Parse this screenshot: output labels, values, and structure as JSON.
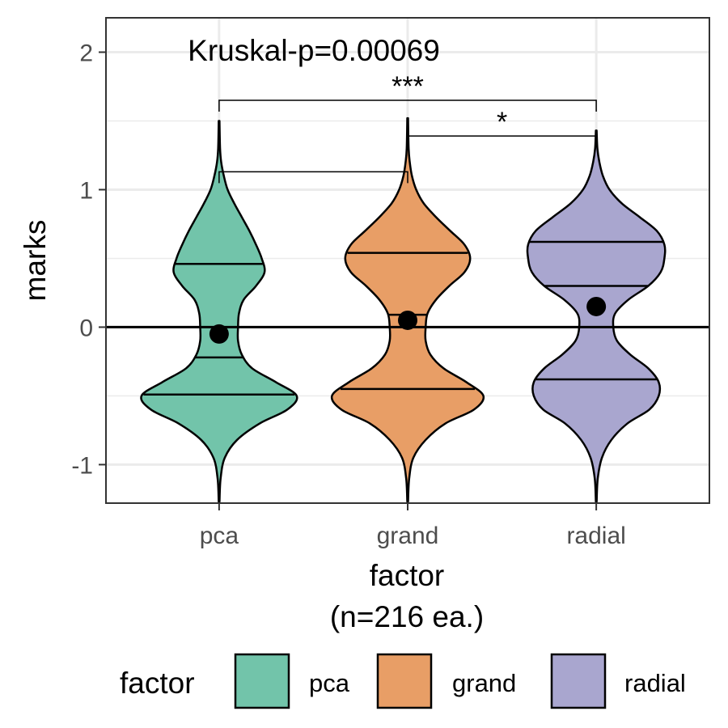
{
  "chart_data": {
    "type": "violin",
    "annotation": "Kruskal-p=0.00069",
    "xlabel": "factor",
    "xlabel_sub": "(n=216 ea.)",
    "ylabel": "marks",
    "ylim": [
      -1.28,
      2.25
    ],
    "yticks": [
      -1,
      0,
      1,
      2
    ],
    "ytick_labels": [
      "-1",
      "0",
      "1",
      "2"
    ],
    "reference_line_y": 0,
    "grid": true,
    "categories": [
      "pca",
      "grand",
      "radial"
    ],
    "colors": {
      "pca": "#72c4aa",
      "grand": "#e89e66",
      "radial": "#a9a6cf"
    },
    "series": [
      {
        "name": "pca",
        "mean": -0.05,
        "quartiles": [
          -0.49,
          -0.22,
          0.46
        ],
        "range": [
          -1.27,
          1.5
        ],
        "color": "#72c4aa",
        "density": [
          [
            -1.27,
            0.004
          ],
          [
            -1.1,
            0.016
          ],
          [
            -0.95,
            0.06
          ],
          [
            -0.82,
            0.19
          ],
          [
            -0.7,
            0.43
          ],
          [
            -0.6,
            0.72
          ],
          [
            -0.5,
            0.82
          ],
          [
            -0.4,
            0.6
          ],
          [
            -0.3,
            0.35
          ],
          [
            -0.2,
            0.24
          ],
          [
            -0.1,
            0.2
          ],
          [
            0.0,
            0.2
          ],
          [
            0.1,
            0.21
          ],
          [
            0.2,
            0.26
          ],
          [
            0.3,
            0.39
          ],
          [
            0.4,
            0.48
          ],
          [
            0.5,
            0.45
          ],
          [
            0.6,
            0.39
          ],
          [
            0.7,
            0.32
          ],
          [
            0.8,
            0.24
          ],
          [
            0.9,
            0.16
          ],
          [
            1.0,
            0.09
          ],
          [
            1.1,
            0.05
          ],
          [
            1.2,
            0.022
          ],
          [
            1.3,
            0.01
          ],
          [
            1.5,
            0.004
          ]
        ]
      },
      {
        "name": "grand",
        "mean": 0.05,
        "quartiles": [
          -0.45,
          0.09,
          0.54
        ],
        "range": [
          -1.27,
          1.52
        ],
        "color": "#e89e66",
        "density": [
          [
            -1.27,
            0.004
          ],
          [
            -1.1,
            0.016
          ],
          [
            -0.95,
            0.06
          ],
          [
            -0.82,
            0.19
          ],
          [
            -0.7,
            0.4
          ],
          [
            -0.6,
            0.7
          ],
          [
            -0.5,
            0.8
          ],
          [
            -0.4,
            0.62
          ],
          [
            -0.3,
            0.38
          ],
          [
            -0.2,
            0.24
          ],
          [
            -0.1,
            0.19
          ],
          [
            0.0,
            0.19
          ],
          [
            0.1,
            0.21
          ],
          [
            0.2,
            0.3
          ],
          [
            0.3,
            0.44
          ],
          [
            0.4,
            0.6
          ],
          [
            0.5,
            0.66
          ],
          [
            0.6,
            0.6
          ],
          [
            0.7,
            0.45
          ],
          [
            0.8,
            0.3
          ],
          [
            0.9,
            0.17
          ],
          [
            1.0,
            0.09
          ],
          [
            1.1,
            0.045
          ],
          [
            1.2,
            0.022
          ],
          [
            1.3,
            0.01
          ],
          [
            1.52,
            0.004
          ]
        ]
      },
      {
        "name": "radial",
        "mean": 0.15,
        "quartiles": [
          -0.38,
          0.3,
          0.62
        ],
        "range": [
          -1.27,
          1.43
        ],
        "color": "#a9a6cf",
        "density": [
          [
            -1.27,
            0.004
          ],
          [
            -1.1,
            0.016
          ],
          [
            -0.95,
            0.06
          ],
          [
            -0.82,
            0.16
          ],
          [
            -0.7,
            0.33
          ],
          [
            -0.6,
            0.56
          ],
          [
            -0.5,
            0.66
          ],
          [
            -0.4,
            0.66
          ],
          [
            -0.3,
            0.55
          ],
          [
            -0.2,
            0.36
          ],
          [
            -0.1,
            0.22
          ],
          [
            0.0,
            0.18
          ],
          [
            0.1,
            0.2
          ],
          [
            0.2,
            0.34
          ],
          [
            0.3,
            0.55
          ],
          [
            0.4,
            0.68
          ],
          [
            0.5,
            0.72
          ],
          [
            0.6,
            0.72
          ],
          [
            0.7,
            0.64
          ],
          [
            0.8,
            0.46
          ],
          [
            0.9,
            0.27
          ],
          [
            1.0,
            0.14
          ],
          [
            1.1,
            0.07
          ],
          [
            1.2,
            0.033
          ],
          [
            1.3,
            0.012
          ],
          [
            1.43,
            0.004
          ]
        ]
      }
    ],
    "significance": [
      {
        "from": "pca",
        "to": "grand",
        "label": "",
        "y": 1.13
      },
      {
        "from": "grand",
        "to": "radial",
        "label": "*",
        "y": 1.39
      },
      {
        "from": "pca",
        "to": "radial",
        "label": "***",
        "y": 1.65
      }
    ],
    "legend": {
      "title": "factor",
      "position": "bottom",
      "items": [
        {
          "label": "pca",
          "color": "#72c4aa"
        },
        {
          "label": "grand",
          "color": "#e89e66"
        },
        {
          "label": "radial",
          "color": "#a9a6cf"
        }
      ]
    }
  }
}
